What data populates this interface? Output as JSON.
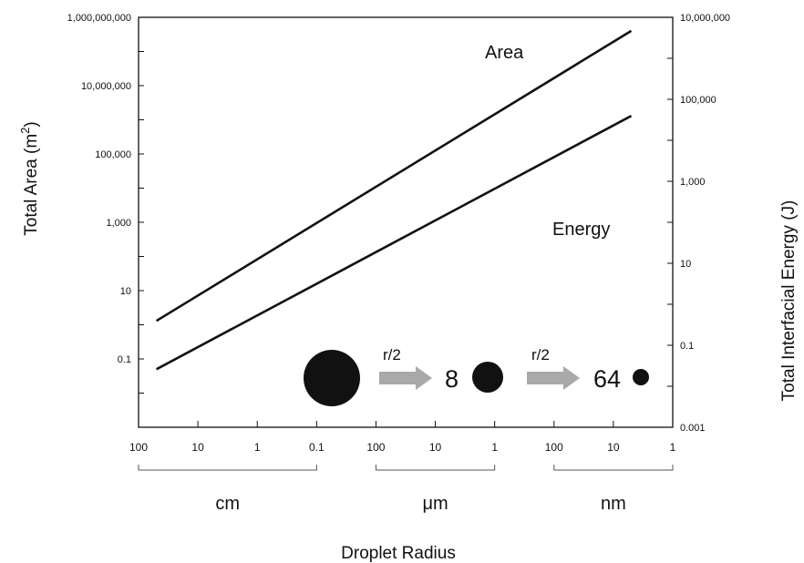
{
  "chart_data": {
    "type": "line",
    "scale": "log-log",
    "xlabel": "Droplet Radius",
    "ylabel_left": "Total Area (m",
    "ylabel_left_sup": "2",
    "ylabel_left_close": ")",
    "ylabel_right": "Total Interfacial Energy (J)",
    "left_axis": {
      "scale": "log",
      "ylim": [
        0.001,
        1000000000
      ],
      "tick_labels": [
        "1,000,000,000",
        "10,000,000",
        "100,000",
        "1,000",
        "10",
        "0.1"
      ]
    },
    "right_axis": {
      "scale": "log",
      "ylim": [
        0.001,
        10000000
      ],
      "tick_labels": [
        "10,000,000",
        "100,000",
        "1,000",
        "10",
        "0.1",
        "0.001"
      ]
    },
    "x_axis": {
      "scale": "log",
      "direction": "decreasing radius, left to right",
      "xlim_m": [
        1,
        1e-09
      ],
      "tick_labels": [
        "100",
        "10",
        "1",
        "0.1",
        "100",
        "10",
        "1",
        "100",
        "10",
        "1"
      ],
      "unit_groups": [
        "cm",
        "μm",
        "nm"
      ]
    },
    "series": [
      {
        "name": "Area",
        "x_m": [
          0.5,
          5e-09
        ],
        "y": [
          1.3,
          400000000
        ]
      },
      {
        "name": "Energy",
        "x_m": [
          0.5,
          5e-09
        ],
        "y": [
          0.05,
          1300000
        ]
      }
    ],
    "annotations": {
      "arrow_labels": [
        "r/2",
        "r/2"
      ],
      "droplet_counts": [
        "8",
        "64"
      ]
    },
    "grid": false,
    "legend": "none (series labeled inline)",
    "colors": {
      "line": "#111111",
      "arrow": "#a9a9a9",
      "droplet": "#111111"
    }
  }
}
